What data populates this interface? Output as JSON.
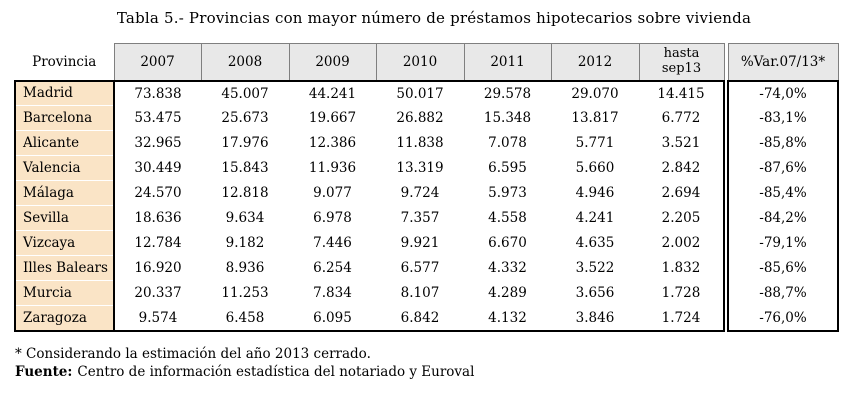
{
  "title": "Tabla 5.- Provincias con mayor número de préstamos hipotecarios sobre vivienda",
  "table": {
    "headers": {
      "province": "Provincia",
      "years": [
        "2007",
        "2008",
        "2009",
        "2010",
        "2011",
        "2012"
      ],
      "until": "hasta\nsep13",
      "variation": "%Var.07/13*"
    },
    "rows": [
      {
        "province": "Madrid",
        "values": [
          "73.838",
          "45.007",
          "44.241",
          "50.017",
          "29.578",
          "29.070",
          "14.415"
        ],
        "variation": "-74,0%"
      },
      {
        "province": "Barcelona",
        "values": [
          "53.475",
          "25.673",
          "19.667",
          "26.882",
          "15.348",
          "13.817",
          "6.772"
        ],
        "variation": "-83,1%"
      },
      {
        "province": "Alicante",
        "values": [
          "32.965",
          "17.976",
          "12.386",
          "11.838",
          "7.078",
          "5.771",
          "3.521"
        ],
        "variation": "-85,8%"
      },
      {
        "province": "Valencia",
        "values": [
          "30.449",
          "15.843",
          "11.936",
          "13.319",
          "6.595",
          "5.660",
          "2.842"
        ],
        "variation": "-87,6%"
      },
      {
        "province": "Málaga",
        "values": [
          "24.570",
          "12.818",
          "9.077",
          "9.724",
          "5.973",
          "4.946",
          "2.694"
        ],
        "variation": "-85,4%"
      },
      {
        "province": "Sevilla",
        "values": [
          "18.636",
          "9.634",
          "6.978",
          "7.357",
          "4.558",
          "4.241",
          "2.205"
        ],
        "variation": "-84,2%"
      },
      {
        "province": "Vizcaya",
        "values": [
          "12.784",
          "9.182",
          "7.446",
          "9.921",
          "6.670",
          "4.635",
          "2.002"
        ],
        "variation": "-79,1%"
      },
      {
        "province": "Illes Balears",
        "values": [
          "16.920",
          "8.936",
          "6.254",
          "6.577",
          "4.332",
          "3.522",
          "1.832"
        ],
        "variation": "-85,6%"
      },
      {
        "province": "Murcia",
        "values": [
          "20.337",
          "11.253",
          "7.834",
          "8.107",
          "4.289",
          "3.656",
          "1.728"
        ],
        "variation": "-88,7%"
      },
      {
        "province": "Zaragoza",
        "values": [
          "9.574",
          "6.458",
          "6.095",
          "6.842",
          "4.132",
          "3.846",
          "1.724"
        ],
        "variation": "-76,0%"
      }
    ]
  },
  "footnotes": {
    "note": "* Considerando la estimación del año 2013 cerrado.",
    "source_label": "Fuente:",
    "source_text": "Centro de información estadística del notariado y Euroval"
  },
  "colors": {
    "province_bg": "#FAE4C6",
    "header_bg": "#E8E8E8",
    "header_border": "#7F7F7F",
    "table_border": "#000000"
  }
}
